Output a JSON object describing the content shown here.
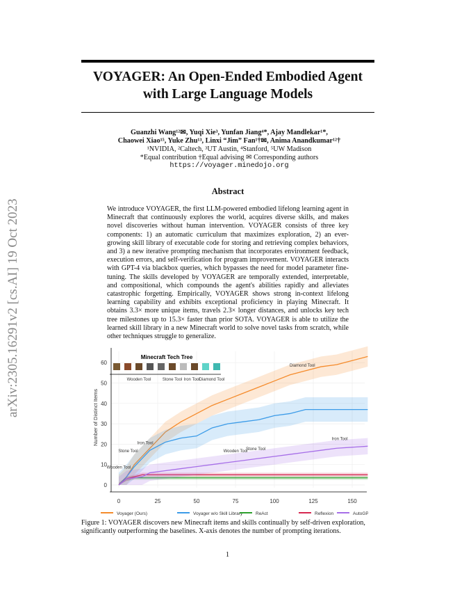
{
  "title": "VOYAGER: An Open-Ended Embodied Agent with Large Language Models",
  "authors_line1": "Guanzhi Wang¹²✉, Yuqi Xie³, Yunfan Jiang⁴*, Ajay Mandlekar¹*,",
  "authors_line2": "Chaowei Xiao¹⁵, Yuke Zhu¹³, Linxi “Jim” Fan¹†✉, Anima Anandkumar¹²†",
  "affiliations": "¹NVIDIA, ²Caltech, ³UT Austin, ⁴Stanford, ⁵UW Madison",
  "notes": "*Equal contribution  †Equal advising  ✉ Corresponding authors",
  "url": "https://voyager.minedojo.org",
  "arxiv_id": "arXiv:2305.16291v2  [cs.AI]  19 Oct 2023",
  "abstract_heading": "Abstract",
  "abstract": "We introduce VOYAGER, the first LLM-powered embodied lifelong learning agent in Minecraft that continuously explores the world, acquires diverse skills, and makes novel discoveries without human intervention. VOYAGER consists of three key components: 1) an automatic curriculum that maximizes exploration, 2) an ever-growing skill library of executable code for storing and retrieving complex behaviors, and 3) a new iterative prompting mechanism that incorporates environment feedback, execution errors, and self-verification for program improvement. VOYAGER interacts with GPT-4 via blackbox queries, which bypasses the need for model parameter fine-tuning. The skills developed by VOYAGER are temporally extended, interpretable, and compositional, which compounds the agent's abilities rapidly and alleviates catastrophic forgetting. Empirically, VOYAGER shows strong in-context lifelong learning capability and exhibits exceptional proficiency in playing Minecraft. It obtains 3.3× more unique items, travels 2.3× longer distances, and unlocks key tech tree milestones up to 15.3× faster than prior SOTA. VOYAGER is able to utilize the learned skill library in a new Minecraft world to solve novel tasks from scratch, while other techniques struggle to generalize.",
  "caption": "Figure 1: VOYAGER discovers new Minecraft items and skills continually by self-driven exploration, significantly outperforming the baselines. X-axis denotes the number of prompting iterations.",
  "page_number": "1",
  "chart_data": {
    "type": "line",
    "title": "",
    "xlabel": "",
    "ylabel": "Number of Distinct Items",
    "xlim": [
      -3,
      162
    ],
    "ylim": [
      -3,
      66
    ],
    "xticks": [
      0,
      25,
      50,
      75,
      100,
      125,
      150
    ],
    "yticks": [
      0,
      10,
      20,
      30,
      40,
      50,
      60
    ],
    "legend_position": "bottom",
    "inset_title": "Minecraft Tech Tree",
    "inset_labels": [
      "Wooden Tool",
      "Stone Tool",
      "Iron Tool",
      "Diamond Tool"
    ],
    "annotations": [
      {
        "text": "Wooden Tool",
        "x": 0,
        "y": 6
      },
      {
        "text": "Stone Tool",
        "x": 6,
        "y": 14
      },
      {
        "text": "Iron Tool",
        "x": 17,
        "y": 18
      },
      {
        "text": "Diamond Tool",
        "x": 118,
        "y": 56
      },
      {
        "text": "Wooden Tool",
        "x": 75,
        "y": 14
      },
      {
        "text": "Stone Tool",
        "x": 88,
        "y": 15
      },
      {
        "text": "Iron Tool",
        "x": 142,
        "y": 20
      }
    ],
    "series": [
      {
        "name": "Voyager (Ours)",
        "color": "#f58b2b",
        "band": 5,
        "x": [
          0,
          5,
          10,
          15,
          20,
          25,
          30,
          40,
          50,
          60,
          70,
          80,
          90,
          100,
          110,
          120,
          130,
          140,
          150,
          160
        ],
        "y": [
          0,
          4,
          10,
          14,
          18,
          22,
          26,
          31,
          35,
          39,
          42,
          45,
          48,
          51,
          54,
          56,
          58,
          59,
          61,
          63
        ]
      },
      {
        "name": "Voyager w/o Skill Library",
        "color": "#3b9be8",
        "band": 6,
        "x": [
          0,
          5,
          10,
          15,
          20,
          25,
          30,
          40,
          50,
          55,
          60,
          70,
          80,
          90,
          100,
          110,
          120,
          160
        ],
        "y": [
          0,
          4,
          9,
          13,
          17,
          19,
          21,
          23,
          24,
          26,
          28,
          30,
          31,
          32,
          34,
          35,
          37,
          37
        ]
      },
      {
        "name": "ReAct",
        "color": "#2ca02c",
        "band": 1,
        "x": [
          0,
          5,
          10,
          160
        ],
        "y": [
          0,
          3,
          3.5,
          3.5
        ]
      },
      {
        "name": "Reflexion",
        "color": "#d62750",
        "band": 1,
        "x": [
          0,
          5,
          10,
          15,
          160
        ],
        "y": [
          0,
          3,
          4,
          5,
          5
        ]
      },
      {
        "name": "AutoGPT",
        "color": "#a66ee8",
        "band": 4,
        "x": [
          0,
          5,
          15,
          20,
          30,
          40,
          50,
          60,
          70,
          80,
          90,
          100,
          110,
          120,
          130,
          140,
          160
        ],
        "y": [
          0,
          3,
          4,
          6,
          7,
          8,
          9,
          10,
          11,
          12,
          13,
          14,
          15,
          16,
          17,
          18,
          19
        ]
      }
    ]
  }
}
